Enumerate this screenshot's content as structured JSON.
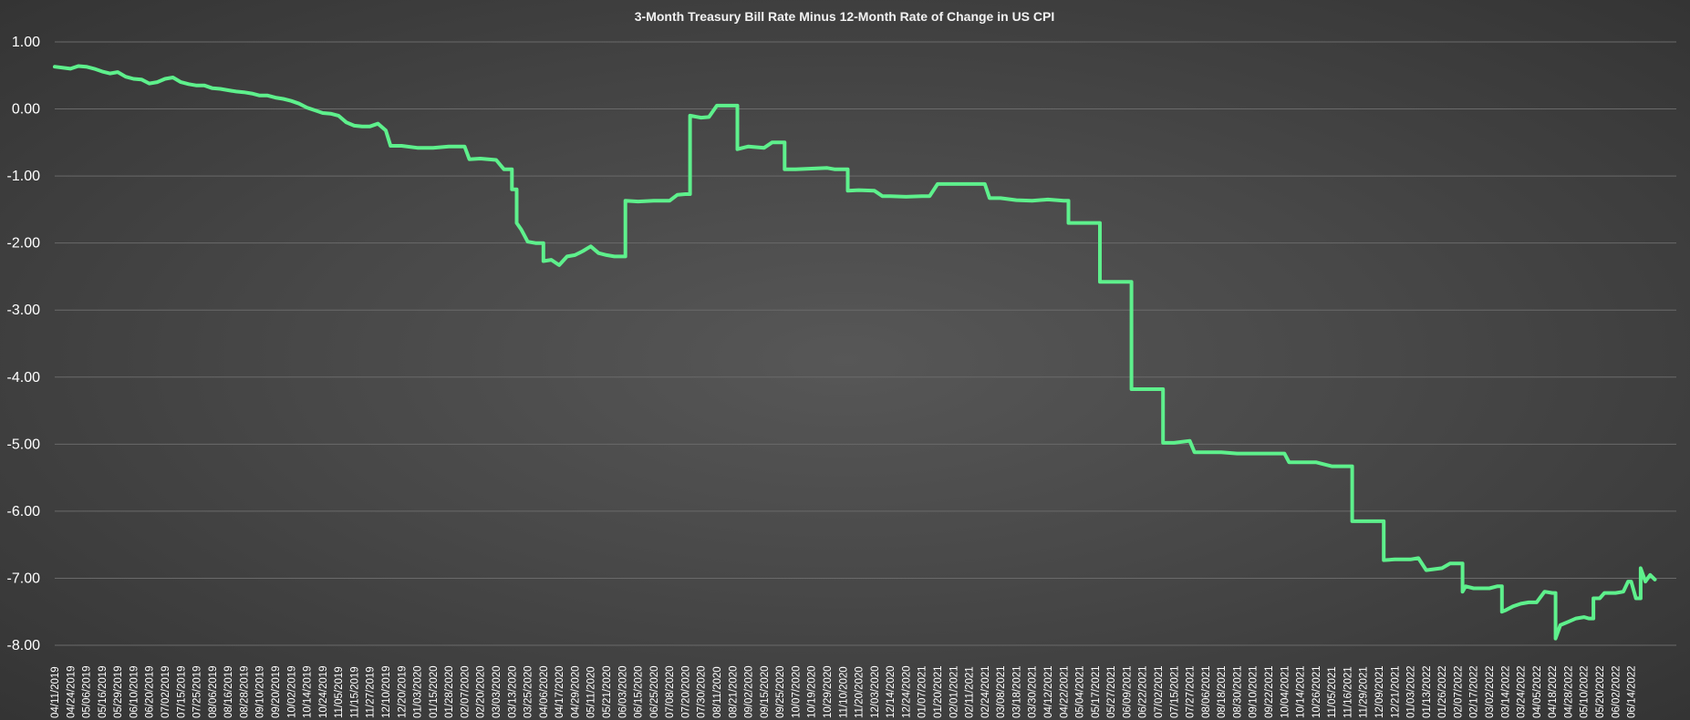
{
  "chart_data": {
    "type": "line",
    "title": "3-Month Treasury Bill Rate Minus 12-Month Rate of Change in US CPI",
    "xlabel": "",
    "ylabel": "",
    "ylim": [
      -8,
      1
    ],
    "yticks": [
      1,
      0,
      -1,
      -2,
      -3,
      -4,
      -5,
      -6,
      -7,
      -8
    ],
    "ytick_labels": [
      "1.00",
      "0.00",
      "-1.00",
      "-2.00",
      "-3.00",
      "-4.00",
      "-5.00",
      "-6.00",
      "-7.00",
      "-8.00"
    ],
    "grid": true,
    "legend": "none",
    "line_color": "#5ef08c",
    "x_tick_labels": [
      "04/11/2019",
      "04/24/2019",
      "05/06/2019",
      "05/16/2019",
      "05/29/2019",
      "06/10/2019",
      "06/20/2019",
      "07/02/2019",
      "07/15/2019",
      "07/25/2019",
      "08/06/2019",
      "08/16/2019",
      "08/28/2019",
      "09/10/2019",
      "09/20/2019",
      "10/02/2019",
      "10/14/2019",
      "10/24/2019",
      "11/05/2019",
      "11/15/2019",
      "11/27/2019",
      "12/10/2019",
      "12/20/2019",
      "01/03/2020",
      "01/15/2020",
      "01/28/2020",
      "02/07/2020",
      "02/20/2020",
      "03/03/2020",
      "03/13/2020",
      "03/25/2020",
      "04/06/2020",
      "04/17/2020",
      "04/29/2020",
      "05/11/2020",
      "05/21/2020",
      "06/03/2020",
      "06/15/2020",
      "06/25/2020",
      "07/08/2020",
      "07/20/2020",
      "07/30/2020",
      "08/11/2020",
      "08/21/2020",
      "09/02/2020",
      "09/15/2020",
      "09/25/2020",
      "10/07/2020",
      "10/19/2020",
      "10/29/2020",
      "11/10/2020",
      "11/20/2020",
      "12/03/2020",
      "12/14/2020",
      "12/24/2020",
      "01/07/2021",
      "01/20/2021",
      "02/01/2021",
      "02/11/2021",
      "02/24/2021",
      "03/08/2021",
      "03/18/2021",
      "03/30/2021",
      "04/12/2021",
      "04/22/2021",
      "05/04/2021",
      "05/17/2021",
      "05/27/2021",
      "06/09/2021",
      "06/22/2021",
      "07/02/2021",
      "07/15/2021",
      "07/27/2021",
      "08/06/2021",
      "08/18/2021",
      "08/30/2021",
      "09/10/2021",
      "09/22/2021",
      "10/04/2021",
      "10/14/2021",
      "10/26/2021",
      "11/05/2021",
      "11/16/2021",
      "11/29/2021",
      "12/09/2021",
      "12/21/2021",
      "01/03/2022",
      "01/13/2022",
      "01/26/2022",
      "02/07/2022",
      "02/17/2022",
      "03/02/2022",
      "03/14/2022",
      "03/24/2022",
      "04/05/2022",
      "04/18/2022",
      "04/28/2022",
      "05/10/2022",
      "05/20/2022",
      "06/02/2022",
      "06/14/2022"
    ],
    "series": [
      {
        "values": [
          [
            0,
            0.63
          ],
          [
            1,
            0.6
          ],
          [
            1.5,
            0.64
          ],
          [
            2,
            0.63
          ],
          [
            2.5,
            0.6
          ],
          [
            3,
            0.56
          ],
          [
            3.5,
            0.53
          ],
          [
            4,
            0.55
          ],
          [
            4.5,
            0.48
          ],
          [
            5,
            0.45
          ],
          [
            5.5,
            0.44
          ],
          [
            6,
            0.38
          ],
          [
            6.5,
            0.4
          ],
          [
            7,
            0.45
          ],
          [
            7.5,
            0.47
          ],
          [
            8,
            0.4
          ],
          [
            8.5,
            0.37
          ],
          [
            9,
            0.35
          ],
          [
            9.5,
            0.35
          ],
          [
            10,
            0.31
          ],
          [
            10.5,
            0.3
          ],
          [
            11,
            0.28
          ],
          [
            11.5,
            0.26
          ],
          [
            12,
            0.25
          ],
          [
            12.5,
            0.23
          ],
          [
            13,
            0.2
          ],
          [
            13.5,
            0.2
          ],
          [
            14,
            0.17
          ],
          [
            14.5,
            0.15
          ],
          [
            15,
            0.12
          ],
          [
            15.5,
            0.08
          ],
          [
            16,
            0.02
          ],
          [
            16.5,
            -0.02
          ],
          [
            17,
            -0.06
          ],
          [
            17.5,
            -0.07
          ],
          [
            18,
            -0.1
          ],
          [
            18.5,
            -0.2
          ],
          [
            19,
            -0.25
          ],
          [
            19.5,
            -0.26
          ],
          [
            20,
            -0.26
          ],
          [
            20.5,
            -0.22
          ],
          [
            21,
            -0.32
          ],
          [
            21.3,
            -0.55
          ],
          [
            22,
            -0.55
          ],
          [
            23,
            -0.58
          ],
          [
            24,
            -0.58
          ],
          [
            25,
            -0.56
          ],
          [
            26,
            -0.56
          ],
          [
            26.3,
            -0.75
          ],
          [
            27,
            -0.74
          ],
          [
            28,
            -0.76
          ],
          [
            28.5,
            -0.9
          ],
          [
            29,
            -1.2
          ],
          [
            29.3,
            -1.7
          ],
          [
            29.6,
            -1.8
          ],
          [
            30,
            -1.98
          ],
          [
            30.5,
            -2.0
          ],
          [
            31,
            -2.27
          ],
          [
            31.5,
            -2.25
          ],
          [
            32,
            -2.33
          ],
          [
            32.5,
            -2.2
          ],
          [
            33,
            -2.18
          ],
          [
            33.5,
            -2.12
          ],
          [
            34,
            -2.05
          ],
          [
            34.5,
            -2.15
          ],
          [
            35,
            -2.18
          ],
          [
            35.5,
            -2.2
          ],
          [
            36,
            -2.2
          ],
          [
            36.2,
            -1.37
          ],
          [
            37,
            -1.38
          ],
          [
            38,
            -1.37
          ],
          [
            39,
            -1.37
          ],
          [
            39.5,
            -1.28
          ],
          [
            40,
            -1.27
          ],
          [
            40.3,
            -0.1
          ],
          [
            41,
            -0.13
          ],
          [
            41.5,
            -0.12
          ],
          [
            42,
            0.05
          ],
          [
            43,
            0.05
          ],
          [
            43.3,
            -0.6
          ],
          [
            44,
            -0.56
          ],
          [
            45,
            -0.58
          ],
          [
            45.5,
            -0.5
          ],
          [
            46,
            -0.5
          ],
          [
            46.3,
            -0.9
          ],
          [
            47,
            -0.9
          ],
          [
            48,
            -0.89
          ],
          [
            49,
            -0.88
          ],
          [
            49.5,
            -0.9
          ],
          [
            50,
            -0.9
          ],
          [
            50.3,
            -1.22
          ],
          [
            51,
            -1.21
          ],
          [
            52,
            -1.22
          ],
          [
            52.5,
            -1.3
          ],
          [
            53,
            -1.3
          ],
          [
            54,
            -1.31
          ],
          [
            55,
            -1.3
          ],
          [
            55.5,
            -1.3
          ],
          [
            56,
            -1.12
          ],
          [
            57,
            -1.12
          ],
          [
            58,
            -1.12
          ],
          [
            59,
            -1.12
          ],
          [
            59.3,
            -1.33
          ],
          [
            60,
            -1.33
          ],
          [
            61,
            -1.36
          ],
          [
            62,
            -1.37
          ],
          [
            63,
            -1.35
          ],
          [
            64,
            -1.37
          ],
          [
            64.3,
            -1.7
          ],
          [
            66,
            -1.7
          ],
          [
            66.3,
            -2.58
          ],
          [
            68,
            -2.58
          ],
          [
            68.3,
            -4.18
          ],
          [
            70,
            -4.18
          ],
          [
            70.3,
            -4.98
          ],
          [
            71,
            -4.98
          ],
          [
            72,
            -4.95
          ],
          [
            72.3,
            -5.12
          ],
          [
            73,
            -5.12
          ],
          [
            74,
            -5.12
          ],
          [
            75,
            -5.14
          ],
          [
            76,
            -5.14
          ],
          [
            77,
            -5.14
          ],
          [
            78,
            -5.14
          ],
          [
            78.3,
            -5.27
          ],
          [
            80,
            -5.27
          ],
          [
            81,
            -5.33
          ],
          [
            82,
            -5.33
          ],
          [
            82.3,
            -6.15
          ],
          [
            84,
            -6.15
          ],
          [
            84.3,
            -6.73
          ],
          [
            85,
            -6.72
          ],
          [
            86,
            -6.72
          ],
          [
            86.5,
            -6.7
          ],
          [
            87,
            -6.88
          ],
          [
            88,
            -6.85
          ],
          [
            88.5,
            -6.78
          ],
          [
            89,
            -6.78
          ],
          [
            89.3,
            -7.2
          ],
          [
            89.5,
            -7.12
          ],
          [
            90,
            -7.15
          ],
          [
            91,
            -7.15
          ],
          [
            91.5,
            -7.12
          ],
          [
            91.8,
            -7.5
          ],
          [
            92,
            -7.48
          ],
          [
            92.5,
            -7.42
          ],
          [
            93,
            -7.38
          ],
          [
            93.5,
            -7.36
          ],
          [
            94,
            -7.36
          ],
          [
            94.5,
            -7.2
          ],
          [
            95,
            -7.22
          ],
          [
            95.2,
            -7.9
          ],
          [
            95.5,
            -7.7
          ],
          [
            96,
            -7.65
          ],
          [
            96.5,
            -7.6
          ],
          [
            97,
            -7.58
          ],
          [
            97.3,
            -7.6
          ],
          [
            97.6,
            -7.3
          ],
          [
            98,
            -7.3
          ],
          [
            98.3,
            -7.22
          ],
          [
            99,
            -7.22
          ],
          [
            99.5,
            -7.2
          ],
          [
            99.8,
            -7.05
          ],
          [
            100,
            -7.05
          ],
          [
            100.3,
            -7.3
          ],
          [
            100.6,
            -6.85
          ],
          [
            100.9,
            -7.05
          ],
          [
            101.2,
            -6.95
          ],
          [
            101.5,
            -7.02
          ]
        ]
      }
    ]
  }
}
